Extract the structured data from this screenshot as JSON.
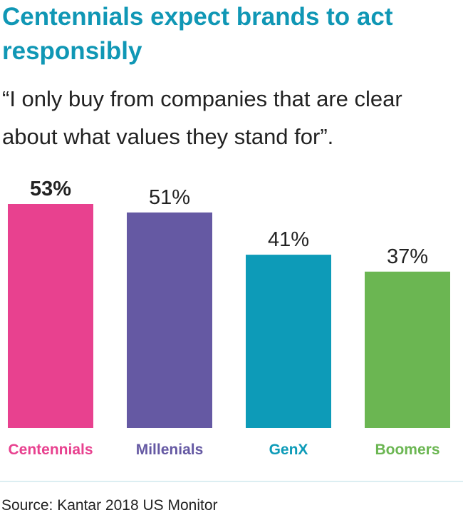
{
  "title": "Centennials expect brands to act responsibly",
  "quote": "“I only buy from companies that are clear about what values they stand for”.",
  "source": "Source: Kantar 2018 US Monitor",
  "chart_data": {
    "type": "bar",
    "title": "Centennials expect brands to act responsibly",
    "subtitle": "“I only buy from companies that are clear about what values they stand for”.",
    "categories": [
      "Centennials",
      "Millenials",
      "GenX",
      "Boomers"
    ],
    "values": [
      53,
      51,
      41,
      37
    ],
    "value_labels": [
      "53%",
      "51%",
      "41%",
      "37%"
    ],
    "colors": [
      "#e8418f",
      "#6559a3",
      "#0d9bb8",
      "#6bb652"
    ],
    "highlight_index": 0,
    "unit": "%",
    "ylim": [
      0,
      53
    ],
    "grid": false,
    "legend": "none"
  }
}
